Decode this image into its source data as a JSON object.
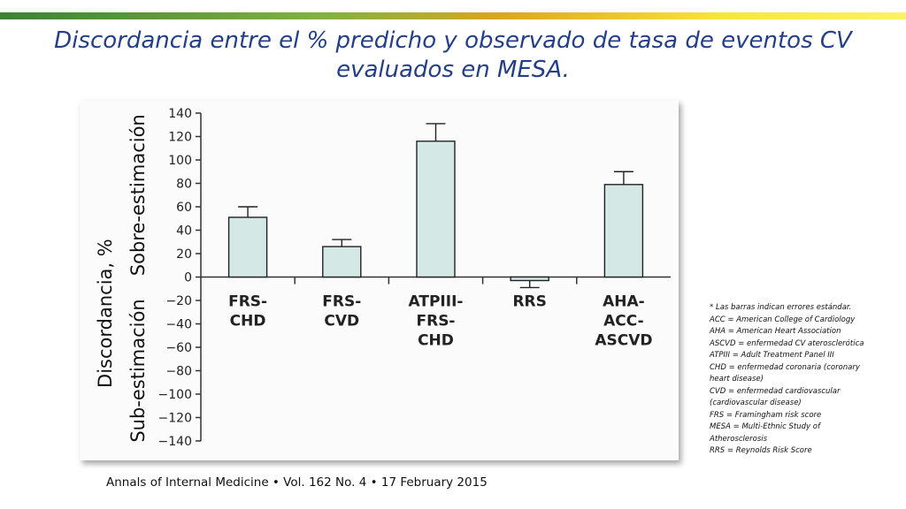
{
  "slide": {
    "title_line1": "Discordancia entre el % predicho y observado de tasa de eventos CV",
    "title_line2": "evaluados en MESA.",
    "citation": "Annals of Internal Medicine • Vol. 162 No. 4 • 17 February 2015",
    "footnotes": [
      "* Las barras indican errores estándar.",
      "ACC = American College of Cardiology",
      "AHA = American Heart Association",
      "ASCVD = enfermedad CV aterosclerótica",
      "ATPIII = Adult Treatment Panel III",
      "CHD = enfermedad coronaria (coronary",
      "heart disease)",
      "CVD = enfermedad cardiovascular",
      "(cardiovascular disease)",
      "FRS = Framingham risk score",
      "MESA = Multi-Ethnic Study of",
      "Atherosclerosis",
      "RRS = Reynolds Risk Score"
    ]
  },
  "colors": {
    "title": "#233f89",
    "bar_fill": "#d4e9e6",
    "bar_stroke": "#222222"
  },
  "chart_data": {
    "type": "bar",
    "ylabel": "Discordancia, %",
    "ylabel_over": "Sobre-estimación",
    "ylabel_under": "Sub-estimación",
    "ylim": [
      -140,
      140
    ],
    "yticks": [
      140,
      120,
      100,
      80,
      60,
      40,
      20,
      0,
      -20,
      -40,
      -60,
      -80,
      -100,
      -120,
      -140
    ],
    "ytick_labels": [
      "140",
      "120",
      "100",
      "80",
      "60",
      "40",
      "20",
      "0",
      "−20",
      "−40",
      "−60",
      "−80",
      "−100",
      "−120",
      "−140"
    ],
    "categories": [
      [
        "FRS-",
        "CHD"
      ],
      [
        "FRS-",
        "CVD"
      ],
      [
        "ATPIII-",
        "FRS-",
        "CHD"
      ],
      [
        "RRS"
      ],
      [
        "AHA-",
        "ACC-",
        "ASCVD"
      ]
    ],
    "values": [
      51,
      26,
      116,
      -3,
      79
    ],
    "error": [
      9,
      6,
      15,
      6,
      11
    ],
    "grid": false
  }
}
